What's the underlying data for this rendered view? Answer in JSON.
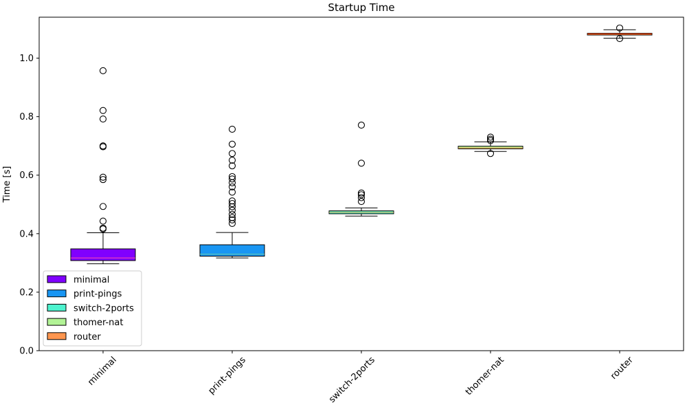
{
  "chart_data": {
    "type": "box",
    "title": "Startup Time",
    "xlabel": "",
    "ylabel": "Time [s]",
    "ylim": [
      0.0,
      1.14
    ],
    "yticks": [
      "0.0",
      "0.2",
      "0.4",
      "0.6",
      "0.8",
      "1.0"
    ],
    "ytick_values": [
      0.0,
      0.2,
      0.4,
      0.6,
      0.8,
      1.0
    ],
    "categories": [
      "minimal",
      "print-pings",
      "switch-2ports",
      "thomer-nat",
      "router"
    ],
    "legend_position": "lower-left",
    "grid": false,
    "series": [
      {
        "name": "minimal",
        "color": "#8000ff",
        "median_color": "#ff4da6",
        "whisker_low": 0.297,
        "q1": 0.308,
        "median": 0.317,
        "q3": 0.348,
        "whisker_high": 0.403,
        "outliers": [
          0.957,
          0.821,
          0.792,
          0.7,
          0.697,
          0.593,
          0.585,
          0.493,
          0.443,
          0.419,
          0.416
        ]
      },
      {
        "name": "print-pings",
        "color": "#1996f3",
        "median_color": "#66ccaa",
        "whisker_low": 0.317,
        "q1": 0.323,
        "median": 0.33,
        "q3": 0.362,
        "whisker_high": 0.404,
        "outliers": [
          0.757,
          0.706,
          0.674,
          0.651,
          0.632,
          0.595,
          0.587,
          0.574,
          0.56,
          0.542,
          0.512,
          0.503,
          0.492,
          0.48,
          0.466,
          0.455,
          0.447,
          0.435
        ]
      },
      {
        "name": "switch-2ports",
        "color": "#4df3ce",
        "median_color": "#f0a040",
        "whisker_low": 0.46,
        "q1": 0.468,
        "median": 0.473,
        "q3": 0.478,
        "whisker_high": 0.488,
        "outliers": [
          0.771,
          0.641,
          0.539,
          0.533,
          0.523,
          0.51
        ]
      },
      {
        "name": "thomer-nat",
        "color": "#b2f396",
        "median_color": "#f08c40",
        "whisker_low": 0.681,
        "q1": 0.69,
        "median": 0.693,
        "q3": 0.699,
        "whisker_high": 0.714,
        "outliers": [
          0.73,
          0.723,
          0.718,
          0.674
        ]
      },
      {
        "name": "router",
        "color": "#ff964f",
        "median_color": "#ff3300",
        "whisker_low": 1.068,
        "q1": 1.079,
        "median": 1.083,
        "q3": 1.085,
        "whisker_high": 1.097,
        "outliers": [
          1.103,
          1.067
        ]
      }
    ]
  }
}
